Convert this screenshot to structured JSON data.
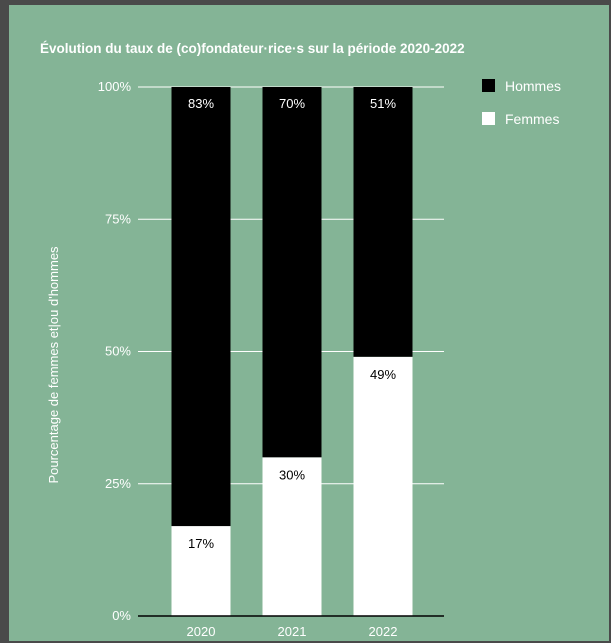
{
  "chart_data": {
    "type": "bar",
    "stacked": true,
    "title": "Évolution du taux de (co)fondateur·rice·s sur la période 2020-2022",
    "ylabel": "Pourcentage de femmes et|ou d'hommes",
    "xlabel": "",
    "categories": [
      "2020",
      "2021",
      "2022"
    ],
    "ylim": [
      0,
      100
    ],
    "yticks": [
      "0%",
      "25%",
      "50%",
      "75%",
      "100%"
    ],
    "grid": true,
    "legend_position": "top-right",
    "series": [
      {
        "name": "Hommes",
        "color": "#000000",
        "values": [
          83,
          70,
          51
        ],
        "labels": [
          "83%",
          "70%",
          "51%"
        ]
      },
      {
        "name": "Femmes",
        "color": "#ffffff",
        "values": [
          17,
          30,
          49
        ],
        "labels": [
          "17%",
          "30%",
          "49%"
        ]
      }
    ],
    "colors": {
      "background": "#84b496",
      "text": "#ffffff",
      "gridline": "#ffffff",
      "frame": "#4a4a4a"
    }
  }
}
